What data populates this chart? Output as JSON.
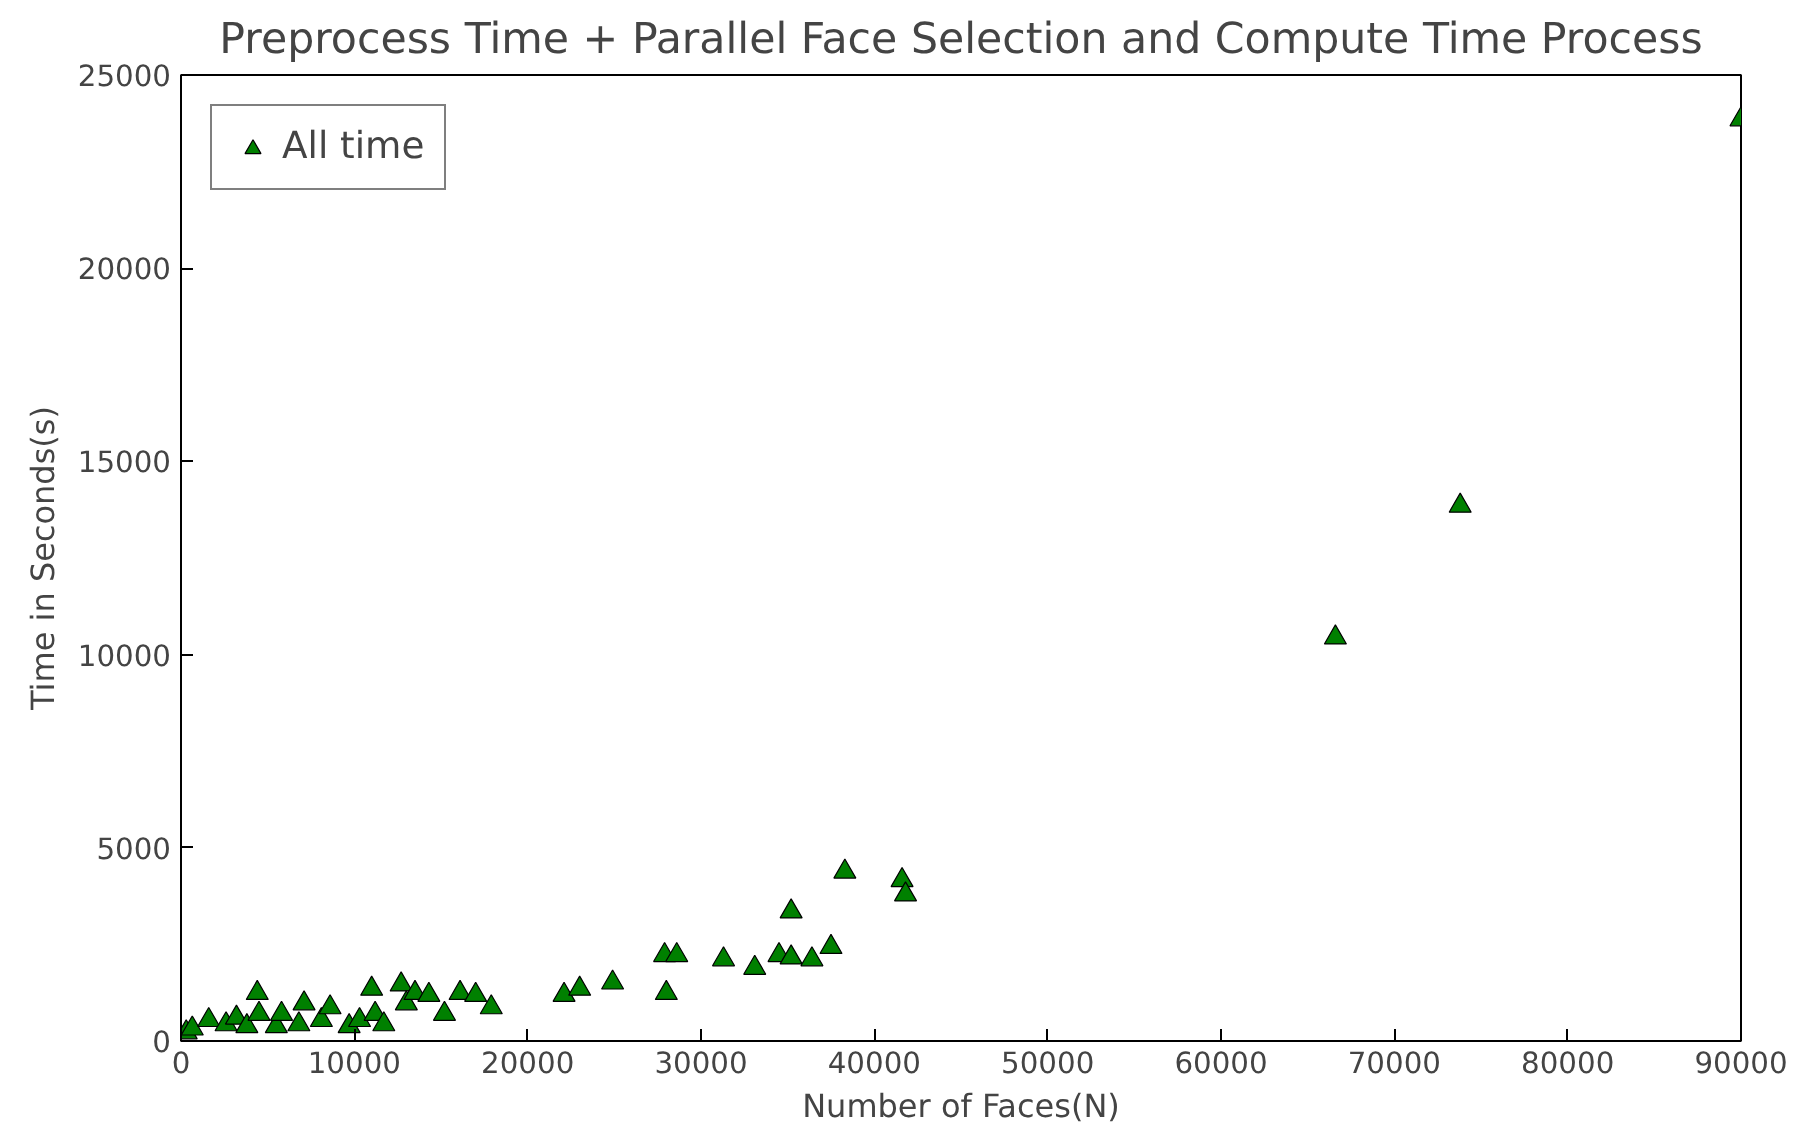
{
  "chart_data": {
    "type": "scatter",
    "title": "Preprocess Time + Parallel Face Selection and Compute Time Process",
    "xlabel": "Number of Faces(N)",
    "ylabel": "Time in Seconds(s)",
    "series": [
      {
        "name": "All time",
        "color": "#008000",
        "x": [
          300,
          650,
          1600,
          2600,
          3200,
          3800,
          4400,
          4500,
          5500,
          5800,
          6800,
          7100,
          8100,
          8600,
          9700,
          10300,
          11000,
          11200,
          11700,
          12700,
          13000,
          13500,
          14300,
          15200,
          16100,
          17000,
          17900,
          22100,
          23000,
          24900,
          27900,
          28000,
          28600,
          31300,
          33100,
          34500,
          35200,
          35200,
          36400,
          37500,
          38300,
          41600,
          41800,
          66600,
          73800,
          90000
        ],
        "values": [
          220,
          320,
          540,
          430,
          600,
          380,
          1240,
          700,
          380,
          700,
          430,
          970,
          540,
          870,
          380,
          540,
          1350,
          700,
          430,
          1460,
          970,
          1240,
          1190,
          700,
          1240,
          1190,
          870,
          1190,
          1350,
          1510,
          2220,
          1240,
          2220,
          2110,
          1890,
          2220,
          3350,
          2160,
          2110,
          2430,
          4380,
          4160,
          3790,
          10440,
          13850,
          23850
        ]
      }
    ],
    "xlim": [
      0,
      90000
    ],
    "ylim": [
      0,
      25000
    ],
    "xticks": [
      0,
      10000,
      20000,
      30000,
      40000,
      50000,
      60000,
      70000,
      80000,
      90000
    ],
    "yticks": [
      0,
      5000,
      10000,
      15000,
      20000,
      25000
    ],
    "marker": "triangle",
    "legend": "top left",
    "grid": false
  }
}
